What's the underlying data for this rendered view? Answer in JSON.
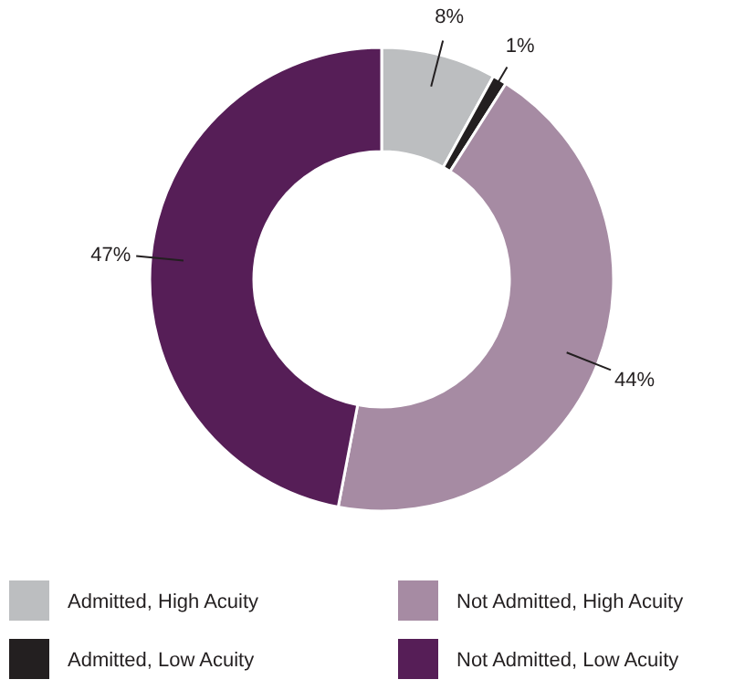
{
  "chart_data": {
    "type": "donut",
    "categories": [
      "Admitted, High Acuity",
      "Admitted, Low Acuity",
      "Not Admitted, High Acuity",
      "Not Admitted, Low Acuity"
    ],
    "values": [
      8,
      1,
      44,
      47
    ],
    "colors": [
      "#bcbec0",
      "#231f20",
      "#a68ba3",
      "#561e57"
    ],
    "value_labels": [
      "8%",
      "1%",
      "44%",
      "47%"
    ],
    "legend": "bottom"
  }
}
